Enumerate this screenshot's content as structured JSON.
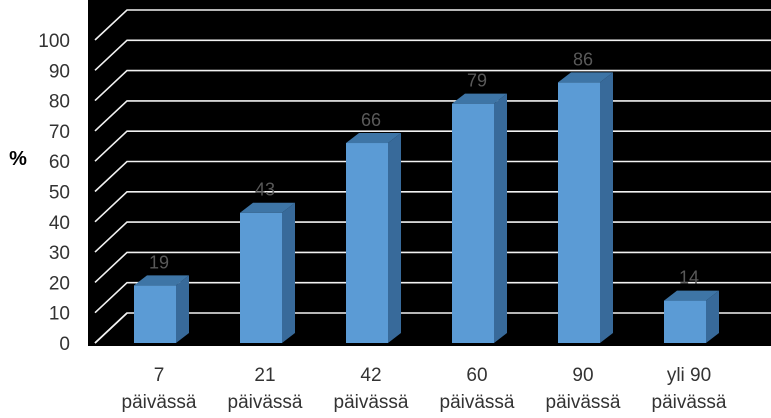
{
  "chart_data": {
    "type": "bar",
    "categories": [
      [
        "7",
        "päivässä"
      ],
      [
        "21",
        "päivässä"
      ],
      [
        "42",
        "päivässä"
      ],
      [
        "60",
        "päivässä"
      ],
      [
        "90",
        "päivässä"
      ],
      [
        "yli 90",
        "päivässä"
      ]
    ],
    "values": [
      19,
      43,
      66,
      79,
      86,
      14
    ],
    "ylabel": "%",
    "ylim": [
      0,
      100
    ],
    "yticks": [
      "0",
      "10",
      "20",
      "30",
      "40",
      "50",
      "60",
      "70",
      "80",
      "90",
      "100"
    ],
    "grid": true,
    "three_d": true,
    "colors": {
      "background": "#000000",
      "bar_front": "#5B9BD5",
      "bar_top": "#3E75A6",
      "bar_side": "#386A9A",
      "gridline": "#F2F2F2",
      "label": "#595959"
    }
  }
}
